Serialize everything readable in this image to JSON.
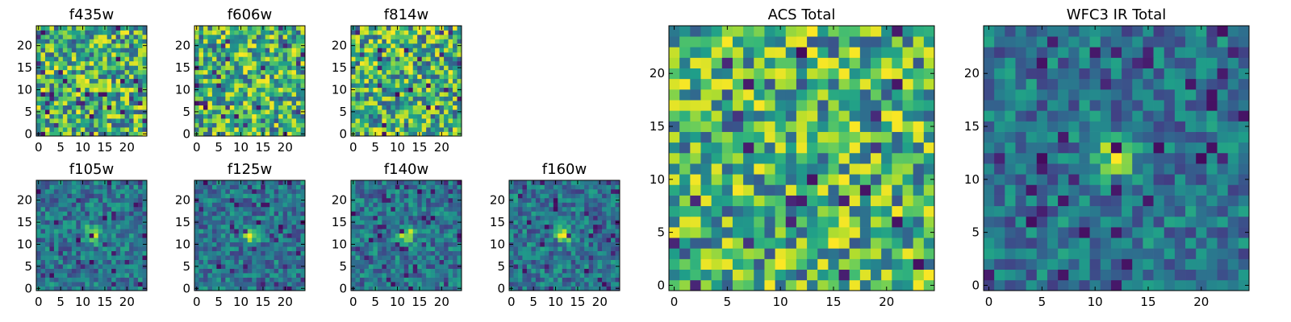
{
  "chart_data": {
    "type": "heatmap",
    "colormap": "viridis",
    "pixels_per_side": 25,
    "panels": [
      {
        "title": "f435w",
        "source_pattern": "noise",
        "xticks": [
          0,
          5,
          10,
          15,
          20
        ],
        "yticks": [
          0,
          5,
          10,
          15,
          20
        ],
        "xlim": [
          0,
          24
        ],
        "ylim": [
          0,
          24
        ]
      },
      {
        "title": "f606w",
        "source_pattern": "noise",
        "xticks": [
          0,
          5,
          10,
          15,
          20
        ],
        "yticks": [
          0,
          5,
          10,
          15,
          20
        ],
        "xlim": [
          0,
          24
        ],
        "ylim": [
          0,
          24
        ]
      },
      {
        "title": "f814w",
        "source_pattern": "noise",
        "xticks": [
          0,
          5,
          10,
          15,
          20
        ],
        "yticks": [
          0,
          5,
          10,
          15,
          20
        ],
        "xlim": [
          0,
          24
        ],
        "ylim": [
          0,
          24
        ]
      },
      {
        "title": "f105w",
        "source_pattern": "central bright source",
        "xticks": [
          0,
          5,
          10,
          15,
          20
        ],
        "yticks": [
          0,
          5,
          10,
          15,
          20
        ],
        "xlim": [
          0,
          24
        ],
        "ylim": [
          0,
          24
        ]
      },
      {
        "title": "f125w",
        "source_pattern": "central bright source",
        "xticks": [
          0,
          5,
          10,
          15,
          20
        ],
        "yticks": [
          0,
          5,
          10,
          15,
          20
        ],
        "xlim": [
          0,
          24
        ],
        "ylim": [
          0,
          24
        ]
      },
      {
        "title": "f140w",
        "source_pattern": "central bright source",
        "xticks": [
          0,
          5,
          10,
          15,
          20
        ],
        "yticks": [
          0,
          5,
          10,
          15,
          20
        ],
        "xlim": [
          0,
          24
        ],
        "ylim": [
          0,
          24
        ]
      },
      {
        "title": "f160w",
        "source_pattern": "central bright source",
        "xticks": [
          0,
          5,
          10,
          15,
          20
        ],
        "yticks": [
          0,
          5,
          10,
          15,
          20
        ],
        "xlim": [
          0,
          24
        ],
        "ylim": [
          0,
          24
        ]
      },
      {
        "title": "ACS Total",
        "source_pattern": "noise",
        "xticks": [
          0,
          5,
          10,
          15,
          20
        ],
        "yticks": [
          0,
          5,
          10,
          15,
          20
        ],
        "xlim": [
          0,
          24
        ],
        "ylim": [
          0,
          24
        ]
      },
      {
        "title": "WFC3 IR Total",
        "source_pattern": "central bright source",
        "xticks": [
          0,
          5,
          10,
          15,
          20
        ],
        "yticks": [
          0,
          5,
          10,
          15,
          20
        ],
        "xlim": [
          0,
          24
        ],
        "ylim": [
          0,
          24
        ]
      }
    ]
  }
}
